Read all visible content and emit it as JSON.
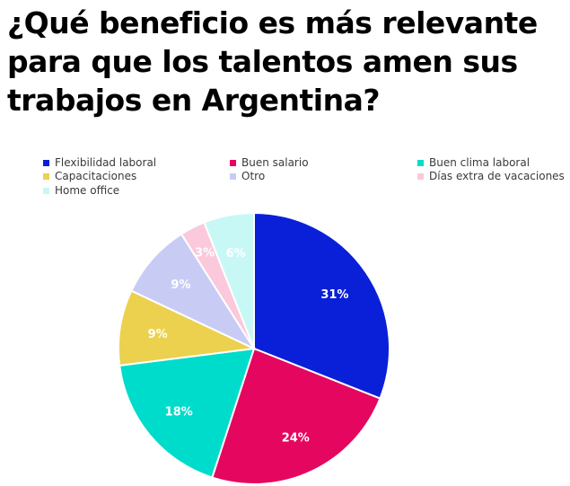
{
  "title_lines": [
    "¿Qué beneficio es más relevante",
    "para que los talentos amen sus",
    "trabajos en Argentina?"
  ],
  "chart_data": {
    "type": "pie",
    "title": "¿Qué beneficio es más relevante para que los talentos amen sus trabajos en Argentina?",
    "categories": [
      "Flexibilidad laboral",
      "Buen salario",
      "Buen clima laboral",
      "Capacitaciones",
      "Otro",
      "Días extra de vacaciones",
      "Home office"
    ],
    "values": [
      31,
      24,
      18,
      9,
      9,
      3,
      6
    ],
    "labels": [
      "31%",
      "24%",
      "18%",
      "9%",
      "9%",
      "3%",
      "6%"
    ],
    "colors": [
      "#0a20d8",
      "#e5065f",
      "#00dccb",
      "#ecd14e",
      "#c8ccf4",
      "#fbc8dc",
      "#c8f8f6"
    ],
    "legend_position": "top"
  }
}
